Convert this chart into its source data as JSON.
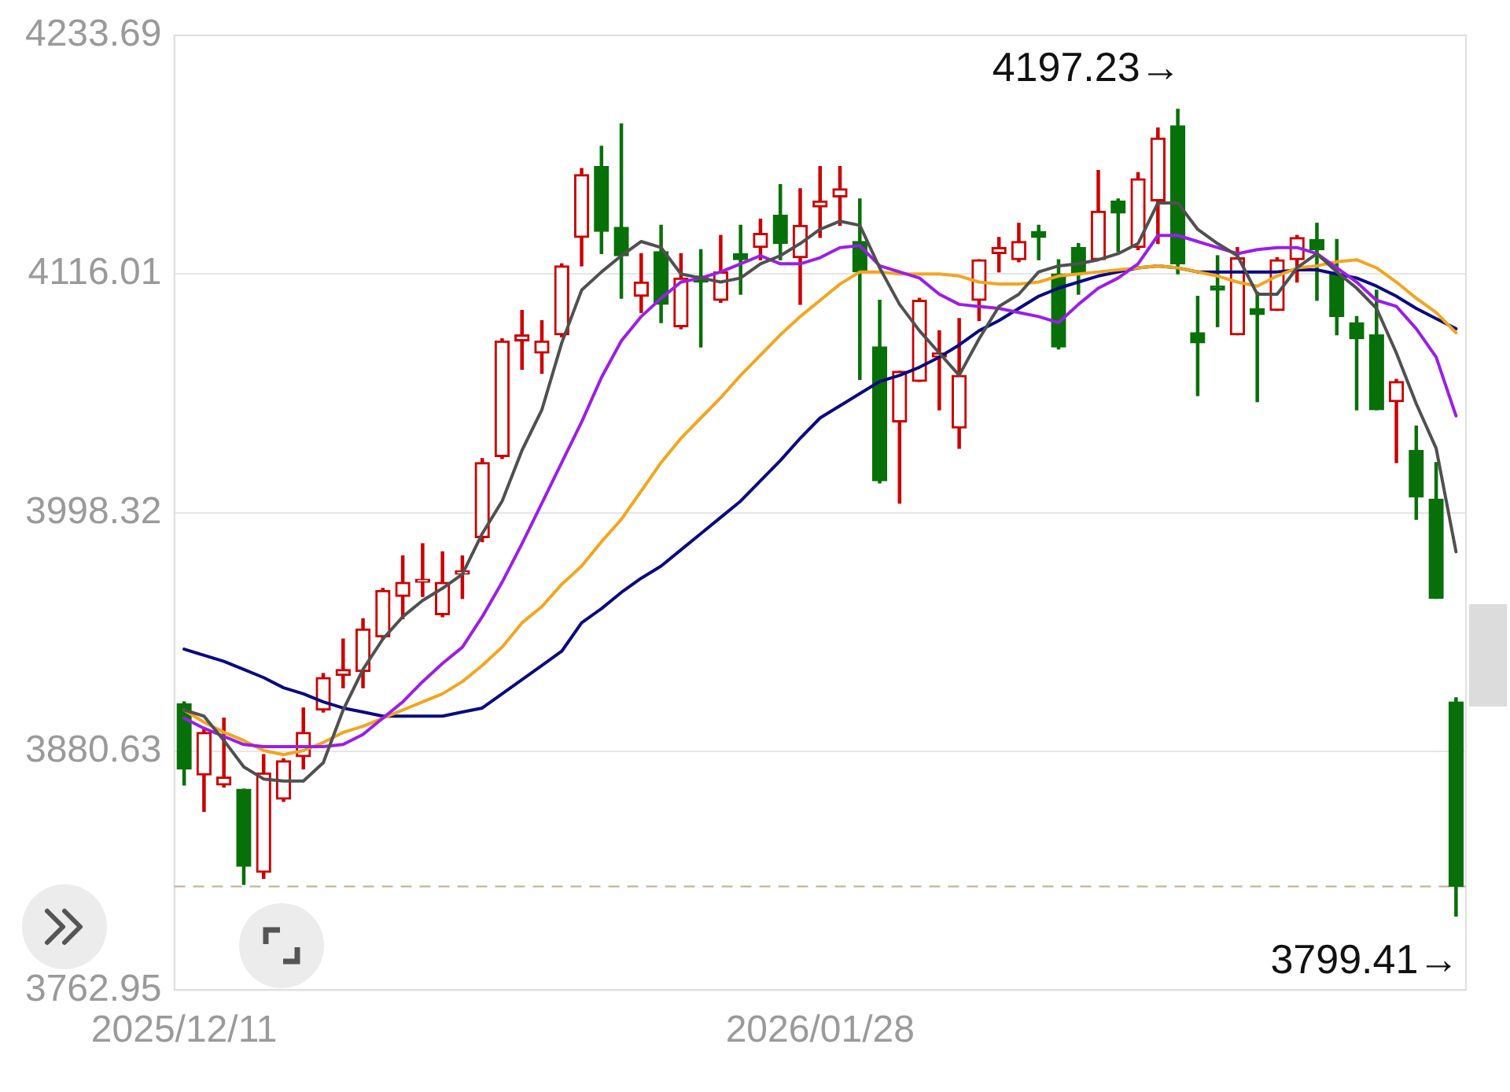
{
  "chart_data": {
    "type": "candlestick",
    "categories": [
      "2025/12/11",
      null,
      null,
      null,
      null,
      null,
      null,
      null,
      null,
      null,
      null,
      null,
      null,
      null,
      null,
      null,
      null,
      null,
      null,
      null,
      null,
      null,
      null,
      null,
      null,
      null,
      null,
      null,
      null,
      null,
      null,
      null,
      "2026/01/28",
      null,
      null,
      null,
      null,
      null,
      null,
      null,
      null,
      null,
      null,
      null,
      null,
      null,
      null,
      null,
      null,
      null,
      null,
      null,
      null,
      null,
      null,
      null,
      null,
      null,
      null,
      null,
      null,
      null,
      null,
      null,
      null
    ],
    "ohlc": [
      [
        3904,
        3905,
        3864,
        3872
      ],
      [
        3869,
        3892,
        3851,
        3890
      ],
      [
        3864,
        3897,
        3863,
        3868
      ],
      [
        3862,
        3862,
        3815,
        3824
      ],
      [
        3821,
        3879,
        3818,
        3870
      ],
      [
        3857,
        3877,
        3856,
        3876
      ],
      [
        3878,
        3902,
        3872,
        3890
      ],
      [
        3901,
        3919,
        3900,
        3917
      ],
      [
        3918,
        3936,
        3912,
        3921
      ],
      [
        3920,
        3946,
        3912,
        3941
      ],
      [
        3937,
        3961,
        3936,
        3960
      ],
      [
        3957,
        3977,
        3946,
        3964
      ],
      [
        3964,
        3983,
        3957,
        3965
      ],
      [
        3948,
        3979,
        3947,
        3964
      ],
      [
        3968,
        3977,
        3956,
        3969
      ],
      [
        3986,
        4025,
        3984,
        4023
      ],
      [
        4026,
        4084,
        4025,
        4083
      ],
      [
        4083,
        4098,
        4069,
        4086
      ],
      [
        4077,
        4093,
        4067,
        4083
      ],
      [
        4086,
        4121,
        4085,
        4120
      ],
      [
        4134,
        4168,
        4120,
        4165
      ],
      [
        4169,
        4179,
        4126,
        4137
      ],
      [
        4139,
        4190,
        4104,
        4125
      ],
      [
        4105,
        4126,
        4097,
        4112
      ],
      [
        4127,
        4140,
        4092,
        4101
      ],
      [
        4090,
        4126,
        4089,
        4114
      ],
      [
        4115,
        4128,
        4080,
        4112
      ],
      [
        4103,
        4135,
        4102,
        4117
      ],
      [
        4126,
        4140,
        4106,
        4123
      ],
      [
        4129,
        4143,
        4123,
        4136
      ],
      [
        4145,
        4160,
        4123,
        4131
      ],
      [
        4124,
        4158,
        4101,
        4140
      ],
      [
        4149,
        4169,
        4134,
        4152
      ],
      [
        4154,
        4169,
        4140,
        4158
      ],
      [
        4132,
        4153,
        4064,
        4117
      ],
      [
        4080,
        4103,
        4013,
        4014
      ],
      [
        4043,
        4068,
        4003,
        4068
      ],
      [
        4063,
        4104,
        4063,
        4103
      ],
      [
        4075,
        4088,
        4049,
        4077
      ],
      [
        4040,
        4094,
        4030,
        4066
      ],
      [
        4103,
        4123,
        4093,
        4123
      ],
      [
        4126,
        4134,
        4117,
        4129
      ],
      [
        4123,
        4141,
        4122,
        4132
      ],
      [
        4137,
        4140,
        4123,
        4134
      ],
      [
        4116,
        4123,
        4079,
        4080
      ],
      [
        4129,
        4131,
        4106,
        4116
      ],
      [
        4123,
        4167,
        4123,
        4147
      ],
      [
        4152,
        4153,
        4127,
        4146
      ],
      [
        4129,
        4166,
        4128,
        4163
      ],
      [
        4152,
        4188,
        4131,
        4183
      ],
      [
        4189,
        4197.23,
        4116,
        4121
      ],
      [
        4087,
        4105,
        4056,
        4082
      ],
      [
        4110,
        4125,
        4090,
        4108
      ],
      [
        4086,
        4129,
        4086,
        4124
      ],
      [
        4099,
        4107,
        4053,
        4096
      ],
      [
        4098,
        4124,
        4098,
        4123
      ],
      [
        4123,
        4135,
        4112,
        4134
      ],
      [
        4133,
        4141,
        4103,
        4128
      ],
      [
        4116,
        4133,
        4086,
        4095
      ],
      [
        4092,
        4095,
        4049,
        4084
      ],
      [
        4086,
        4108,
        4049,
        4049
      ],
      [
        4053,
        4064,
        4023,
        4063
      ],
      [
        4029,
        4041,
        3995,
        4006
      ],
      [
        4005,
        4023,
        3956,
        3956
      ],
      [
        3905,
        3907,
        3799.41,
        3814
      ]
    ],
    "colors": [
      "#087008",
      "#cc0000",
      "#cc0000",
      "#087008",
      "#cc0000",
      "#cc0000",
      "#cc0000",
      "#cc0000",
      "#cc0000",
      "#cc0000",
      "#cc0000",
      "#cc0000",
      "#cc0000",
      "#cc0000",
      "#cc0000",
      "#cc0000",
      "#cc0000",
      "#cc0000",
      "#cc0000",
      "#cc0000",
      "#cc0000",
      "#087008",
      "#087008",
      "#cc0000",
      "#087008",
      "#cc0000",
      "#087008",
      "#cc0000",
      "#087008",
      "#cc0000",
      "#087008",
      "#cc0000",
      "#cc0000",
      "#cc0000",
      "#087008",
      "#087008",
      "#cc0000",
      "#cc0000",
      "#cc0000",
      "#cc0000",
      "#cc0000",
      "#cc0000",
      "#cc0000",
      "#087008",
      "#087008",
      "#087008",
      "#cc0000",
      "#087008",
      "#cc0000",
      "#cc0000",
      "#087008",
      "#087008",
      "#087008",
      "#cc0000",
      "#087008",
      "#cc0000",
      "#cc0000",
      "#087008",
      "#087008",
      "#087008",
      "#087008",
      "#cc0000",
      "#087008",
      "#087008",
      "#087008"
    ],
    "series": [
      {
        "type": "line",
        "color": "#505050",
        "values": [
          3901,
          3898,
          3886,
          3873,
          3867,
          3866,
          3866,
          3875,
          3901,
          3921,
          3936,
          3947,
          3955,
          3961,
          3968,
          3988,
          4004,
          4029,
          4049,
          4082,
          4108,
          4117,
          4125,
          4132,
          4129,
          4116,
          4114,
          4112,
          4114,
          4121,
          4125,
          4131,
          4138,
          4142,
          4140,
          4119,
          4101,
          4088,
          4077,
          4066,
          4084,
          4100,
          4106,
          4117,
          4120,
          4121,
          4123,
          4126,
          4131,
          4151,
          4151,
          4138,
          4131,
          4125,
          4106,
          4106,
          4119,
          4126,
          4117,
          4109,
          4099,
          4077,
          4052,
          4030,
          3979
        ]
      },
      {
        "type": "line",
        "color": "#9a1ee8",
        "values": [
          3897,
          3892,
          3888,
          3884,
          3883,
          3883,
          3883,
          3883,
          3884,
          3889,
          3897,
          3905,
          3915,
          3924,
          3932,
          3947,
          3964,
          3983,
          4003,
          4023,
          4043,
          4065,
          4083,
          4095,
          4104,
          4112,
          4114,
          4117,
          4121,
          4125,
          4121,
          4121,
          4124,
          4129,
          4130,
          4120,
          4117,
          4114,
          4106,
          4101,
          4100,
          4099,
          4097,
          4095,
          4092,
          4101,
          4109,
          4114,
          4121,
          4135,
          4135,
          4132,
          4129,
          4126,
          4128,
          4129,
          4129,
          4126,
          4119,
          4112,
          4103,
          4100,
          4089,
          4075,
          4046
        ]
      },
      {
        "type": "line",
        "color": "#f2a51f",
        "values": [
          3901,
          3895,
          3890,
          3886,
          3881,
          3879,
          3881,
          3885,
          3890,
          3893,
          3897,
          3901,
          3905,
          3909,
          3915,
          3923,
          3932,
          3944,
          3952,
          3963,
          3972,
          3984,
          3995,
          4009,
          4023,
          4035,
          4045,
          4055,
          4066,
          4076,
          4086,
          4095,
          4103,
          4111,
          4117,
          4117,
          4116,
          4116,
          4116,
          4115,
          4112,
          4111,
          4111,
          4112,
          4115,
          4116,
          4117,
          4118,
          4119,
          4120,
          4119,
          4117,
          4115,
          4112,
          4110,
          4115,
          4119,
          4120,
          4122,
          4123,
          4119,
          4112,
          4104,
          4097,
          4087
        ]
      },
      {
        "type": "line",
        "color": "#0a0a80",
        "values": [
          3931,
          3928,
          3925,
          3921,
          3917,
          3912,
          3909,
          3905,
          3902,
          3900,
          3898,
          3898,
          3898,
          3898,
          3900,
          3902,
          3909,
          3916,
          3923,
          3930,
          3944,
          3951,
          3959,
          3966,
          3972,
          3980,
          3988,
          3996,
          4004,
          4014,
          4024,
          4035,
          4045,
          4051,
          4057,
          4063,
          4066,
          4070,
          4075,
          4081,
          4088,
          4093,
          4099,
          4105,
          4109,
          4112,
          4115,
          4117,
          4119,
          4120,
          4119,
          4117,
          4117,
          4117,
          4117,
          4117,
          4118,
          4118,
          4116,
          4114,
          4110,
          4105,
          4099,
          4094,
          4089
        ]
      }
    ],
    "ylim": [
      3762.95,
      4233.69
    ],
    "yticks": [
      3762.95,
      3880.63,
      3998.32,
      4116.01,
      4233.69
    ],
    "grid": "y",
    "ref_lines": [
      {
        "axis": "y",
        "value": 3814,
        "color": "#c8bca4",
        "line_style": "dashed"
      }
    ],
    "annotations": [
      "4197.23→",
      "3799.41→"
    ]
  }
}
